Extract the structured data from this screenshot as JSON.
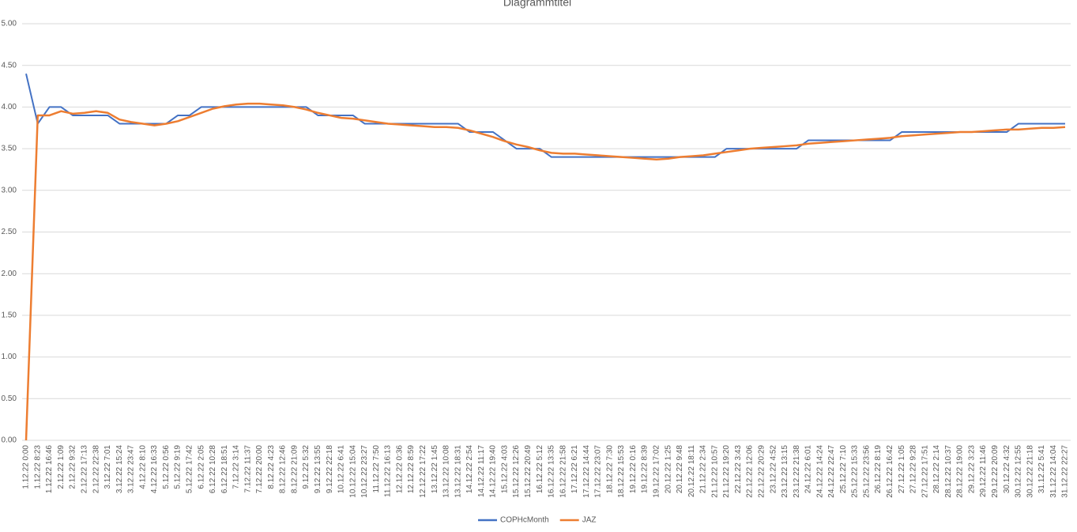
{
  "chart_data": {
    "type": "line",
    "title": "Diagrammtitel",
    "categories": [
      "1.12.22 0:00",
      "1.12.22 8:23",
      "1.12.22 16:46",
      "2.12.22 1:09",
      "2.12.22 9:32",
      "2.12.22 17:13",
      "2.12.22 22:38",
      "3.12.22 7:01",
      "3.12.22 15:24",
      "3.12.22 23:47",
      "4.12.22 8:10",
      "4.12.22 16:33",
      "5.12.22 0:56",
      "5.12.22 9:19",
      "5.12.22 17:42",
      "6.12.22 2:05",
      "6.12.22 10:28",
      "6.12.22 18:51",
      "7.12.22 3:14",
      "7.12.22 11:37",
      "7.12.22 20:00",
      "8.12.22 4:23",
      "8.12.22 12:46",
      "8.12.22 21:09",
      "9.12.22 5:32",
      "9.12.22 13:55",
      "9.12.22 22:18",
      "10.12.22 6:41",
      "10.12.22 15:04",
      "10.12.22 23:27",
      "11.12.22 7:50",
      "11.12.22 16:13",
      "12.12.22 0:36",
      "12.12.22 8:59",
      "12.12.22 17:22",
      "13.12.22 1:45",
      "13.12.22 10:08",
      "13.12.22 18:31",
      "14.12.22 2:54",
      "14.12.22 11:17",
      "14.12.22 19:40",
      "15.12.22 4:03",
      "15.12.22 12:26",
      "15.12.22 20:49",
      "16.12.22 5:12",
      "16.12.22 13:35",
      "16.12.22 21:58",
      "17.12.22 6:21",
      "17.12.22 14:44",
      "17.12.22 23:07",
      "18.12.22 7:30",
      "18.12.22 15:53",
      "19.12.22 0:16",
      "19.12.22 8:39",
      "19.12.22 17:02",
      "20.12.22 1:25",
      "20.12.22 9:48",
      "20.12.22 18:11",
      "21.12.22 2:34",
      "21.12.22 10:57",
      "21.12.22 19:20",
      "22.12.22 3:43",
      "22.12.22 12:06",
      "22.12.22 20:29",
      "23.12.22 4:52",
      "23.12.22 13:15",
      "23.12.22 21:38",
      "24.12.22 6:01",
      "24.12.22 14:24",
      "24.12.22 22:47",
      "25.12.22 7:10",
      "25.12.22 15:33",
      "25.12.22 23:56",
      "26.12.22 8:19",
      "26.12.22 16:42",
      "27.12.22 1:05",
      "27.12.22 9:28",
      "27.12.22 17:51",
      "28.12.22 2:14",
      "28.12.22 10:37",
      "28.12.22 19:00",
      "29.12.22 3:23",
      "29.12.22 11:46",
      "29.12.22 20:09",
      "30.12.22 4:32",
      "30.12.22 12:55",
      "30.12.22 21:18",
      "31.12.22 5:41",
      "31.12.22 14:04",
      "31.12.22 22:27"
    ],
    "series": [
      {
        "name": "COPHcMonth",
        "color": "#4472c4",
        "values": [
          4.4,
          3.8,
          4.0,
          4.0,
          3.9,
          3.9,
          3.9,
          3.9,
          3.8,
          3.8,
          3.8,
          3.8,
          3.8,
          3.9,
          3.9,
          4.0,
          4.0,
          4.0,
          4.0,
          4.0,
          4.0,
          4.0,
          4.0,
          4.0,
          4.0,
          3.9,
          3.9,
          3.9,
          3.9,
          3.8,
          3.8,
          3.8,
          3.8,
          3.8,
          3.8,
          3.8,
          3.8,
          3.8,
          3.7,
          3.7,
          3.7,
          3.6,
          3.5,
          3.5,
          3.5,
          3.4,
          3.4,
          3.4,
          3.4,
          3.4,
          3.4,
          3.4,
          3.4,
          3.4,
          3.4,
          3.4,
          3.4,
          3.4,
          3.4,
          3.4,
          3.5,
          3.5,
          3.5,
          3.5,
          3.5,
          3.5,
          3.5,
          3.6,
          3.6,
          3.6,
          3.6,
          3.6,
          3.6,
          3.6,
          3.6,
          3.7,
          3.7,
          3.7,
          3.7,
          3.7,
          3.7,
          3.7,
          3.7,
          3.7,
          3.7,
          3.8,
          3.8,
          3.8,
          3.8,
          3.8
        ]
      },
      {
        "name": "JAZ",
        "color": "#ed7d31",
        "values": [
          0,
          3.9,
          3.9,
          3.95,
          3.92,
          3.93,
          3.95,
          3.93,
          3.85,
          3.82,
          3.8,
          3.78,
          3.8,
          3.83,
          3.88,
          3.93,
          3.98,
          4.01,
          4.03,
          4.04,
          4.04,
          4.03,
          4.02,
          4.0,
          3.97,
          3.93,
          3.9,
          3.87,
          3.86,
          3.84,
          3.82,
          3.8,
          3.79,
          3.78,
          3.77,
          3.76,
          3.76,
          3.75,
          3.72,
          3.68,
          3.64,
          3.59,
          3.55,
          3.52,
          3.48,
          3.45,
          3.44,
          3.44,
          3.43,
          3.42,
          3.41,
          3.4,
          3.39,
          3.38,
          3.37,
          3.38,
          3.4,
          3.41,
          3.42,
          3.44,
          3.46,
          3.48,
          3.5,
          3.51,
          3.52,
          3.53,
          3.54,
          3.56,
          3.57,
          3.58,
          3.59,
          3.6,
          3.61,
          3.62,
          3.63,
          3.65,
          3.66,
          3.67,
          3.68,
          3.69,
          3.7,
          3.7,
          3.71,
          3.72,
          3.73,
          3.73,
          3.74,
          3.75,
          3.75,
          3.76
        ]
      }
    ],
    "ylim": [
      0,
      5
    ],
    "yticks": [
      {
        "value": 0,
        "label": "0.00"
      },
      {
        "value": 0.5,
        "label": "0.50"
      },
      {
        "value": 1,
        "label": "1.00"
      },
      {
        "value": 1.5,
        "label": "1.50"
      },
      {
        "value": 2,
        "label": "2.00"
      },
      {
        "value": 2.5,
        "label": "2.50"
      },
      {
        "value": 3,
        "label": "3.00"
      },
      {
        "value": 3.5,
        "label": "3.50"
      },
      {
        "value": 4,
        "label": "4.00"
      },
      {
        "value": 4.5,
        "label": "4.50"
      },
      {
        "value": 5,
        "label": "5.00"
      }
    ],
    "grid": true,
    "legend": "bottom"
  }
}
